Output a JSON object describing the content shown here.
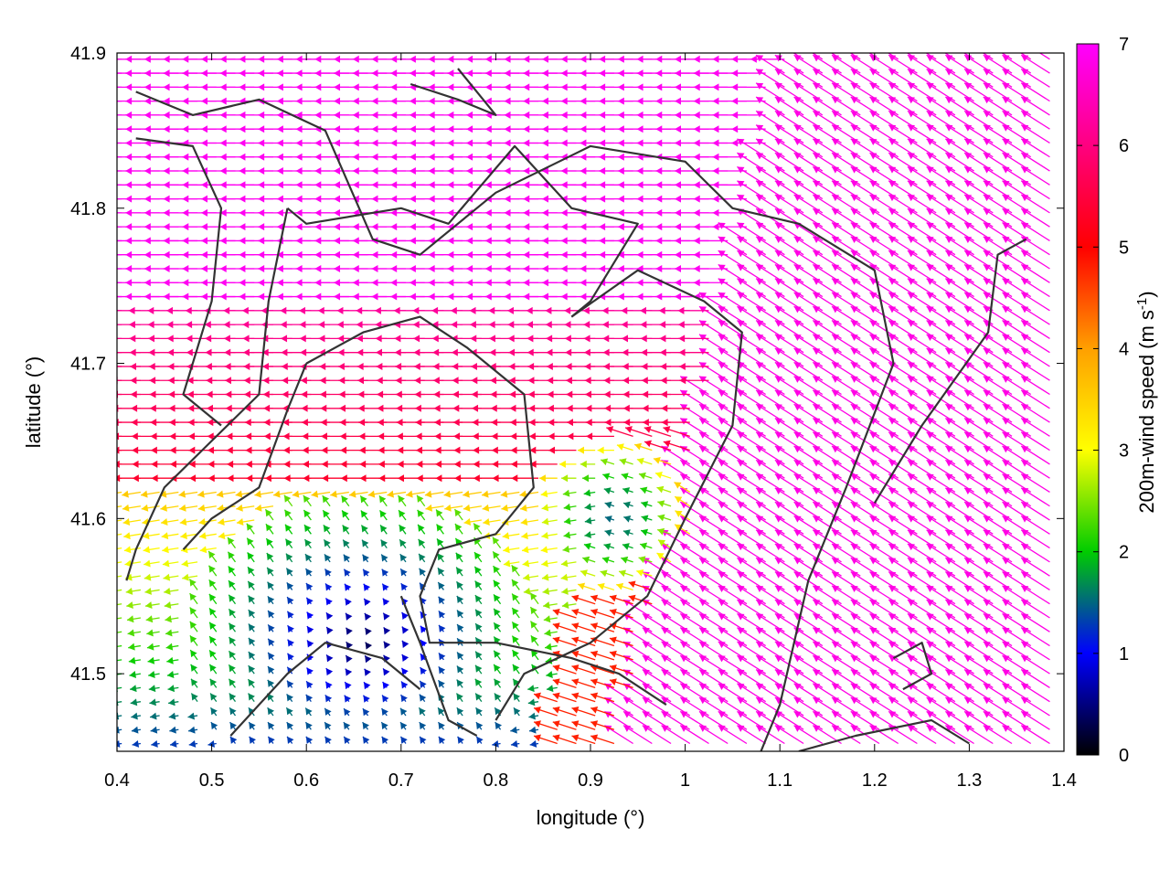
{
  "chart_data": {
    "type": "vector field",
    "xlabel": "longitude (°)",
    "ylabel": "latitude (°)",
    "xlim": [
      0.4,
      1.4
    ],
    "ylim": [
      41.45,
      41.9
    ],
    "x_ticks": [
      "0.4",
      "0.5",
      "0.6",
      "0.7",
      "0.8",
      "0.9",
      "1",
      "1.1",
      "1.2",
      "1.3",
      "1.4"
    ],
    "y_ticks": [
      "41.5",
      "41.6",
      "41.7",
      "41.8",
      "41.9"
    ],
    "colorbar": {
      "label": "200m-wind speed (m s-1)",
      "label_main": "200m-wind speed (m s",
      "label_sup": "-1",
      "label_end": ")",
      "range": [
        0,
        7
      ],
      "ticks": [
        "0",
        "1",
        "2",
        "3",
        "4",
        "5",
        "6",
        "7"
      ],
      "colormap": [
        "#000000",
        "#0000ff",
        "#00cc00",
        "#ffff00",
        "#ffa000",
        "#ff0000",
        "#ff00ff"
      ]
    },
    "wind_regimes": [
      {
        "region": "north (lat > 41.74)",
        "direction": "from east, toward west",
        "speed_m_s": 6.8
      },
      {
        "region": "central band (lat 41.62–41.74)",
        "direction": "from east, toward west",
        "speed_m_s": 5.4
      },
      {
        "region": "southeast (lon > 0.95)",
        "direction": "toward north-west",
        "speed_m_s": 6.8
      },
      {
        "region": "southwest basin (lon 0.55–0.75, lat 41.47–41.58)",
        "direction": "weak, toward north-west",
        "speed_m_s": 0.6
      }
    ],
    "grid": false,
    "legend_position": "colorbar right"
  }
}
